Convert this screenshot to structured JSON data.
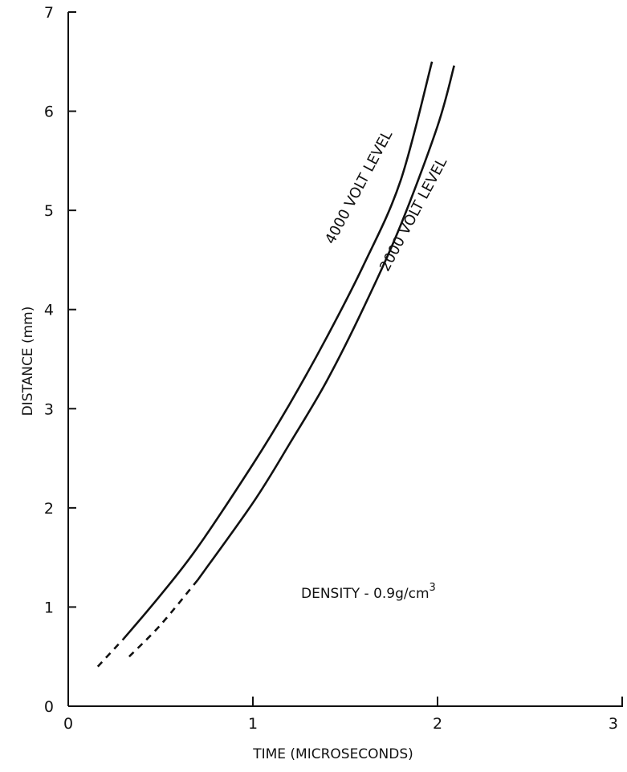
{
  "chart_data": {
    "type": "line",
    "xlabel": "TIME (MICROSECONDS)",
    "ylabel": "DISTANCE (mm)",
    "xlim": [
      0,
      3
    ],
    "ylim": [
      0,
      7
    ],
    "x_ticks": [
      "0",
      "1",
      "2",
      "3"
    ],
    "y_ticks": [
      "0",
      "1",
      "2",
      "3",
      "4",
      "5",
      "6",
      "7"
    ],
    "grid": false,
    "annotation": "DENSITY - 0.9g/cm",
    "annotation_sup": "3",
    "series": [
      {
        "name": "4000 VOLT LEVEL",
        "dashed_until_x": 0.3,
        "x": [
          0.16,
          0.3,
          0.5,
          0.7,
          1.0,
          1.2,
          1.4,
          1.6,
          1.8,
          1.97
        ],
        "y": [
          0.4,
          0.68,
          1.12,
          1.6,
          2.44,
          3.05,
          3.72,
          4.45,
          5.3,
          6.5
        ]
      },
      {
        "name": "2000 VOLT LEVEL",
        "dashed_until_x": 0.6,
        "x": [
          0.33,
          0.5,
          0.7,
          1.0,
          1.2,
          1.4,
          1.6,
          1.8,
          2.0,
          2.09
        ],
        "y": [
          0.5,
          0.82,
          1.27,
          2.05,
          2.65,
          3.28,
          4.02,
          4.85,
          5.85,
          6.46
        ]
      }
    ]
  }
}
